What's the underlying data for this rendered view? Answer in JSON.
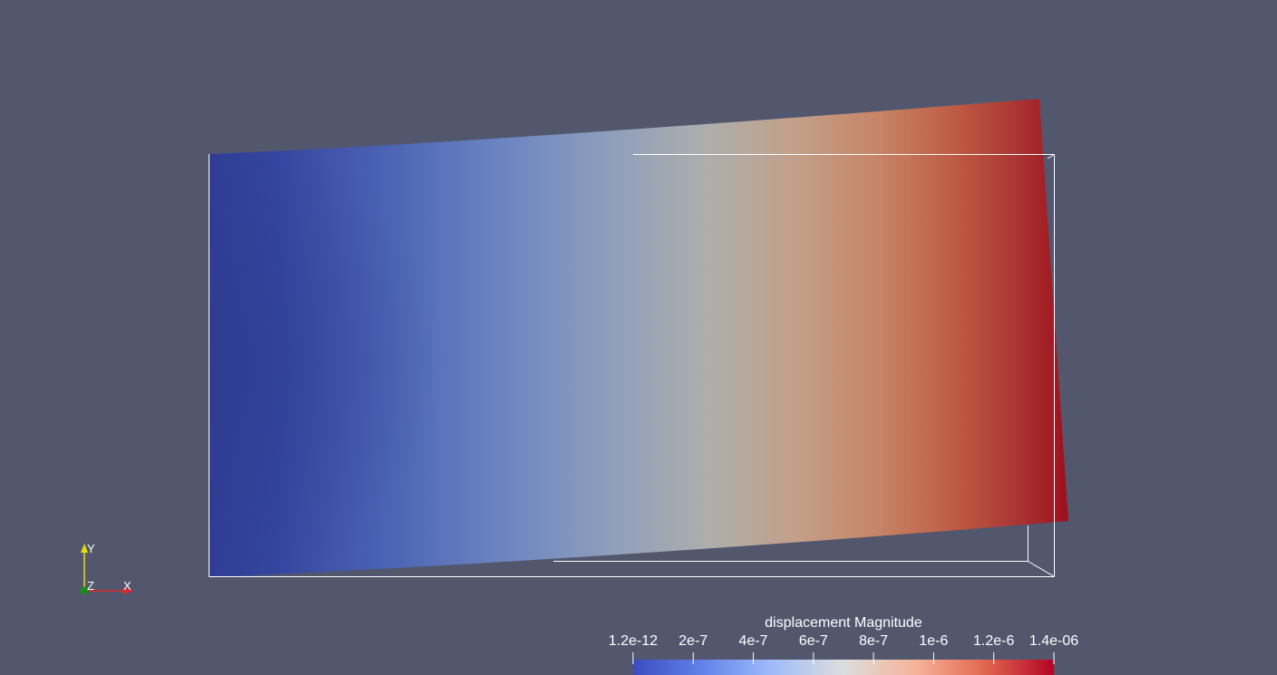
{
  "scalar_bar": {
    "title": "displacement Magnitude",
    "ticks": [
      "1.2e-12",
      "2e-7",
      "4e-7",
      "6e-7",
      "8e-7",
      "1e-6",
      "1.2e-6",
      "1.4e-06"
    ],
    "tick_values": [
      1.2e-12,
      2e-07,
      4e-07,
      6e-07,
      8e-07,
      1e-06,
      1.2e-06,
      1.4e-06
    ],
    "range": [
      1.2e-12,
      1.4e-06
    ],
    "colormap": [
      "#3b4cc0",
      "#7396f5",
      "#b0cbfc",
      "#dddddd",
      "#f6bfa6",
      "#ea7b60",
      "#b40426"
    ]
  },
  "orientation_axes": {
    "x_label": "X",
    "y_label": "Y",
    "z_label": "Z",
    "x_color": "#e0282c",
    "y_color": "#e6e000",
    "z_color": "#1a8c1a"
  },
  "colors": {
    "background": "#52576e",
    "outline": "#ffffff",
    "low": "#2f3f9a",
    "high": "#a5101f"
  }
}
